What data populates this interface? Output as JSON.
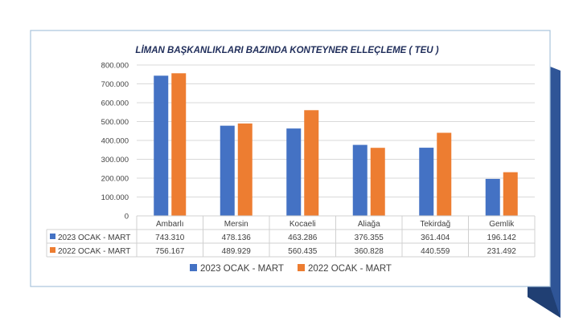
{
  "chart_data": {
    "type": "bar",
    "title": "LİMAN BAŞKANLIKLARI BAZINDA KONTEYNER ELLEÇLEME ( TEU )",
    "categories": [
      "Ambarlı",
      "Mersin",
      "Kocaeli",
      "Aliağa",
      "Tekirdağ",
      "Gemlik"
    ],
    "series": [
      {
        "name": "2023 OCAK - MART",
        "color": "#4472c4",
        "values": [
          743310,
          478136,
          463286,
          376355,
          361404,
          196142
        ],
        "labels": [
          "743.310",
          "478.136",
          "463.286",
          "376.355",
          "361.404",
          "196.142"
        ]
      },
      {
        "name": "2022 OCAK - MART",
        "color": "#ed7d31",
        "values": [
          756167,
          489929,
          560435,
          360828,
          440559,
          231492
        ],
        "labels": [
          "756.167",
          "489.929",
          "560.435",
          "360.828",
          "440.559",
          "231.492"
        ]
      }
    ],
    "ylim": [
      0,
      800000
    ],
    "yticks": [
      "0",
      "100.000",
      "200.000",
      "300.000",
      "400.000",
      "500.000",
      "600.000",
      "700.000",
      "800.000"
    ],
    "grid": true,
    "legend": "bottom",
    "xlabel": "",
    "ylabel": ""
  }
}
